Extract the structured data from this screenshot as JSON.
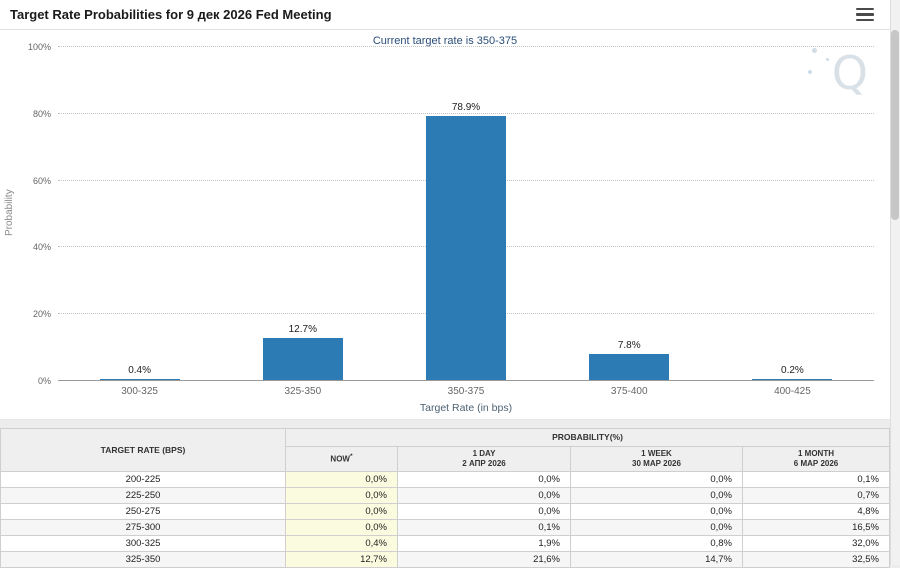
{
  "header": {
    "title": "Target Rate Probabilities for 9 дек 2026 Fed Meeting"
  },
  "chart_data": {
    "type": "bar",
    "title": "Target Rate Probabilities for 9 дек 2026 Fed Meeting",
    "subtitle": "Current target rate is 350-375",
    "xlabel": "Target Rate (in bps)",
    "ylabel": "Probability",
    "categories": [
      "300-325",
      "325-350",
      "350-375",
      "375-400",
      "400-425"
    ],
    "values": [
      0.4,
      12.7,
      78.9,
      7.8,
      0.2
    ],
    "value_labels": [
      "0.4%",
      "12.7%",
      "78.9%",
      "7.8%",
      "0.2%"
    ],
    "ylim": [
      0,
      100
    ],
    "ytick_labels": [
      "100%",
      "80%",
      "60%",
      "40%",
      "20%",
      "0%"
    ],
    "grid": "horizontal-dotted",
    "legend": "none",
    "bar_color": "#2d7bb5"
  },
  "watermark": {
    "letter": "Q"
  },
  "table": {
    "rate_header": "TARGET RATE (BPS)",
    "probability_header": "PROBABILITY(%)",
    "columns": [
      {
        "line1": "NOW",
        "sup": "*",
        "line2": ""
      },
      {
        "line1": "1 DAY",
        "line2": "2 АПР 2026"
      },
      {
        "line1": "1 WEEK",
        "line2": "30 МАР 2026"
      },
      {
        "line1": "1 MONTH",
        "line2": "6 МАР 2026"
      }
    ],
    "rows": [
      {
        "rate": "200-225",
        "values": [
          "0,0%",
          "0,0%",
          "0,0%",
          "0,1%"
        ]
      },
      {
        "rate": "225-250",
        "values": [
          "0,0%",
          "0,0%",
          "0,0%",
          "0,7%"
        ]
      },
      {
        "rate": "250-275",
        "values": [
          "0,0%",
          "0,0%",
          "0,0%",
          "4,8%"
        ]
      },
      {
        "rate": "275-300",
        "values": [
          "0,0%",
          "0,1%",
          "0,0%",
          "16,5%"
        ]
      },
      {
        "rate": "300-325",
        "values": [
          "0,4%",
          "1,9%",
          "0,8%",
          "32,0%"
        ]
      },
      {
        "rate": "325-350",
        "values": [
          "12,7%",
          "21,6%",
          "14,7%",
          "32,5%"
        ]
      }
    ]
  },
  "colors": {
    "bar": "#2d7bb5",
    "subtitle_text": "#2a4d78",
    "now_column_bg": "#fbfbdf"
  }
}
